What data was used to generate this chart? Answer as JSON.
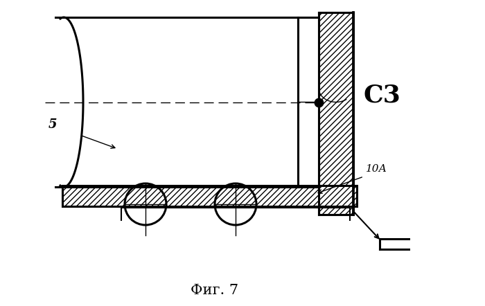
{
  "title": "Фиг. 7",
  "label_5": "5",
  "label_10A": "10А",
  "label_F3": "С3",
  "bg_color": "#ffffff",
  "line_color": "#000000",
  "title_fontsize": 15,
  "label_fontsize": 13
}
